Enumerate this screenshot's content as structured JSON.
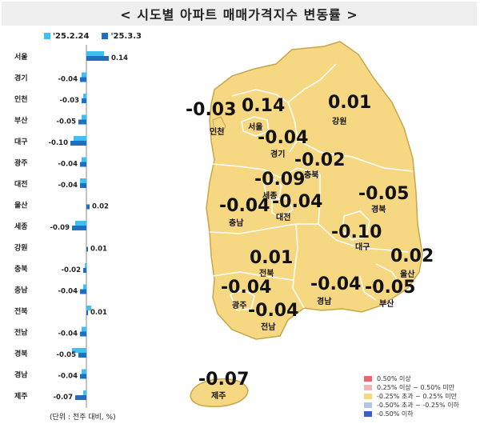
{
  "title": "< 시도별 아파트 매매가격지수 변동률 >",
  "legend": {
    "series1": "'25.2.24",
    "series2": "'25.3.3"
  },
  "colors": {
    "series1": "#3fc0f0",
    "series2": "#1f6fbf",
    "map_fill": "#f7d882",
    "map_stroke": "#caa64a"
  },
  "unit_note": "(단위 : 전주 대비, %)",
  "chart_data": {
    "type": "bar",
    "categories": [
      "서울",
      "경기",
      "인천",
      "부산",
      "대구",
      "광주",
      "대전",
      "울산",
      "세종",
      "강원",
      "충북",
      "충남",
      "전북",
      "전남",
      "경북",
      "경남",
      "제주"
    ],
    "series": [
      {
        "name": "'25.2.24",
        "values": [
          0.11,
          -0.03,
          -0.02,
          -0.03,
          -0.08,
          -0.03,
          -0.04,
          0.0,
          -0.07,
          0.0,
          -0.01,
          -0.02,
          0.03,
          -0.03,
          -0.09,
          -0.03,
          -0.02
        ]
      },
      {
        "name": "'25.3.3",
        "values": [
          0.14,
          -0.04,
          -0.03,
          -0.05,
          -0.1,
          -0.04,
          -0.04,
          0.02,
          -0.09,
          0.01,
          -0.02,
          -0.04,
          0.01,
          -0.04,
          -0.05,
          -0.04,
          -0.07
        ]
      }
    ],
    "labels": [
      "0.14",
      "-0.04",
      "-0.03",
      "-0.05",
      "-0.10",
      "-0.04",
      "-0.04",
      "0.02",
      "-0.09",
      "0.01",
      "-0.02",
      "-0.04",
      "0.01",
      "-0.04",
      "-0.05",
      "-0.04",
      "-0.07"
    ]
  },
  "map": {
    "regions": [
      {
        "name": "인천",
        "value": "-0.03"
      },
      {
        "name": "서울",
        "value": "0.14"
      },
      {
        "name": "강원",
        "value": "0.01"
      },
      {
        "name": "경기",
        "value": "-0.04"
      },
      {
        "name": "충북",
        "value": "-0.02"
      },
      {
        "name": "세종",
        "value": "-0.09"
      },
      {
        "name": "충남",
        "value": "-0.04"
      },
      {
        "name": "대전",
        "value": "-0.04"
      },
      {
        "name": "경북",
        "value": "-0.05"
      },
      {
        "name": "대구",
        "value": "-0.10"
      },
      {
        "name": "전북",
        "value": "0.01"
      },
      {
        "name": "울산",
        "value": "0.02"
      },
      {
        "name": "광주",
        "value": "-0.04"
      },
      {
        "name": "경남",
        "value": "-0.04"
      },
      {
        "name": "부산",
        "value": "-0.05"
      },
      {
        "name": "전남",
        "value": "-0.04"
      },
      {
        "name": "제주",
        "value": "-0.07"
      }
    ],
    "legend": [
      {
        "label": "0.50% 이상",
        "color": "#e8676b"
      },
      {
        "label": "0.25% 이상 ~ 0.50% 미만",
        "color": "#f5b4b4"
      },
      {
        "label": "-0.25% 초과 ~ 0.25% 미만",
        "color": "#f7d882"
      },
      {
        "label": "-0.50% 초과 ~ -0.25% 이하",
        "color": "#b4c4ec"
      },
      {
        "label": "-0.50% 이하",
        "color": "#3a5fc8"
      }
    ]
  }
}
